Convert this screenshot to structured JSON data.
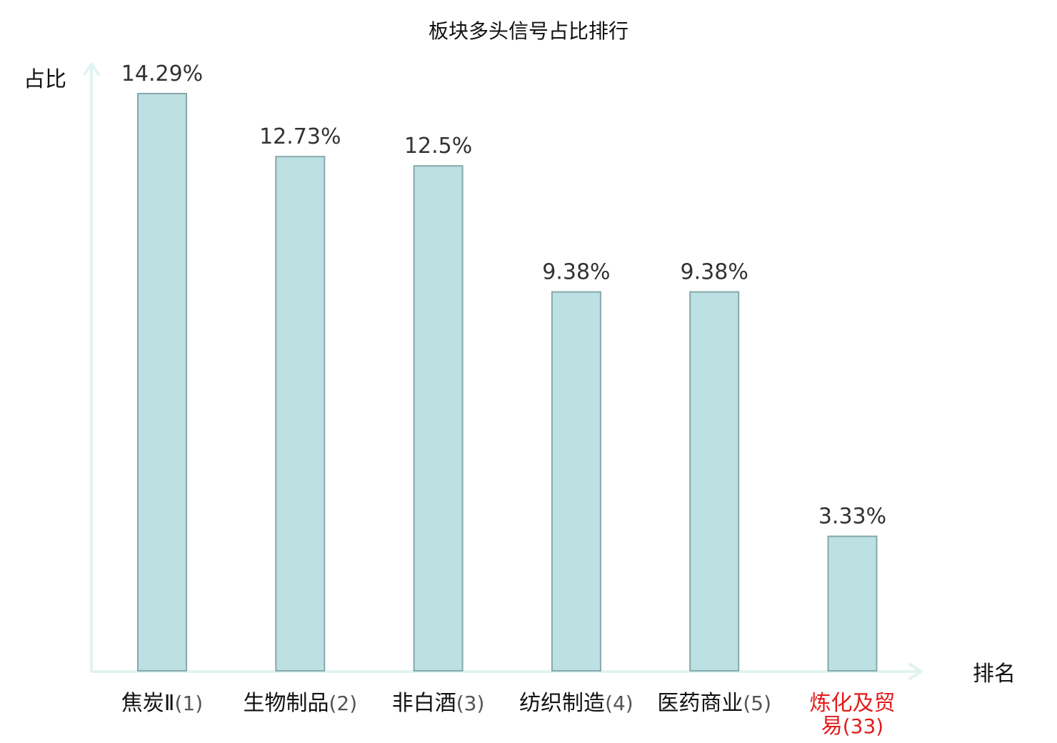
{
  "chart_data": {
    "type": "bar",
    "title": "板块多头信号占比排行",
    "ylabel": "占比",
    "xlabel": "排名",
    "ylim": [
      0,
      15
    ],
    "grid": false,
    "categories": [
      {
        "name": "焦炭Ⅱ",
        "rank": "(1)",
        "highlight": false
      },
      {
        "name": "生物制品",
        "rank": "(2)",
        "highlight": false
      },
      {
        "name": "非白酒",
        "rank": "(3)",
        "highlight": false
      },
      {
        "name": "纺织制造",
        "rank": "(4)",
        "highlight": false
      },
      {
        "name": "医药商业",
        "rank": "(5)",
        "highlight": false
      },
      {
        "name": "炼化及贸易",
        "rank": "(33)",
        "highlight": true
      }
    ],
    "values": [
      14.29,
      12.73,
      12.5,
      9.38,
      9.38,
      3.33
    ],
    "value_labels": [
      "14.29%",
      "12.73%",
      "12.5%",
      "9.38%",
      "9.38%",
      "3.33%"
    ]
  },
  "colors": {
    "bar_fill": "#bde0e3",
    "bar_stroke": "#86a8aa",
    "axis": "#e1f3f1",
    "text": "#111111",
    "value_text": "#333333",
    "rank_text": "#555555",
    "highlight": "#e31b1b"
  }
}
